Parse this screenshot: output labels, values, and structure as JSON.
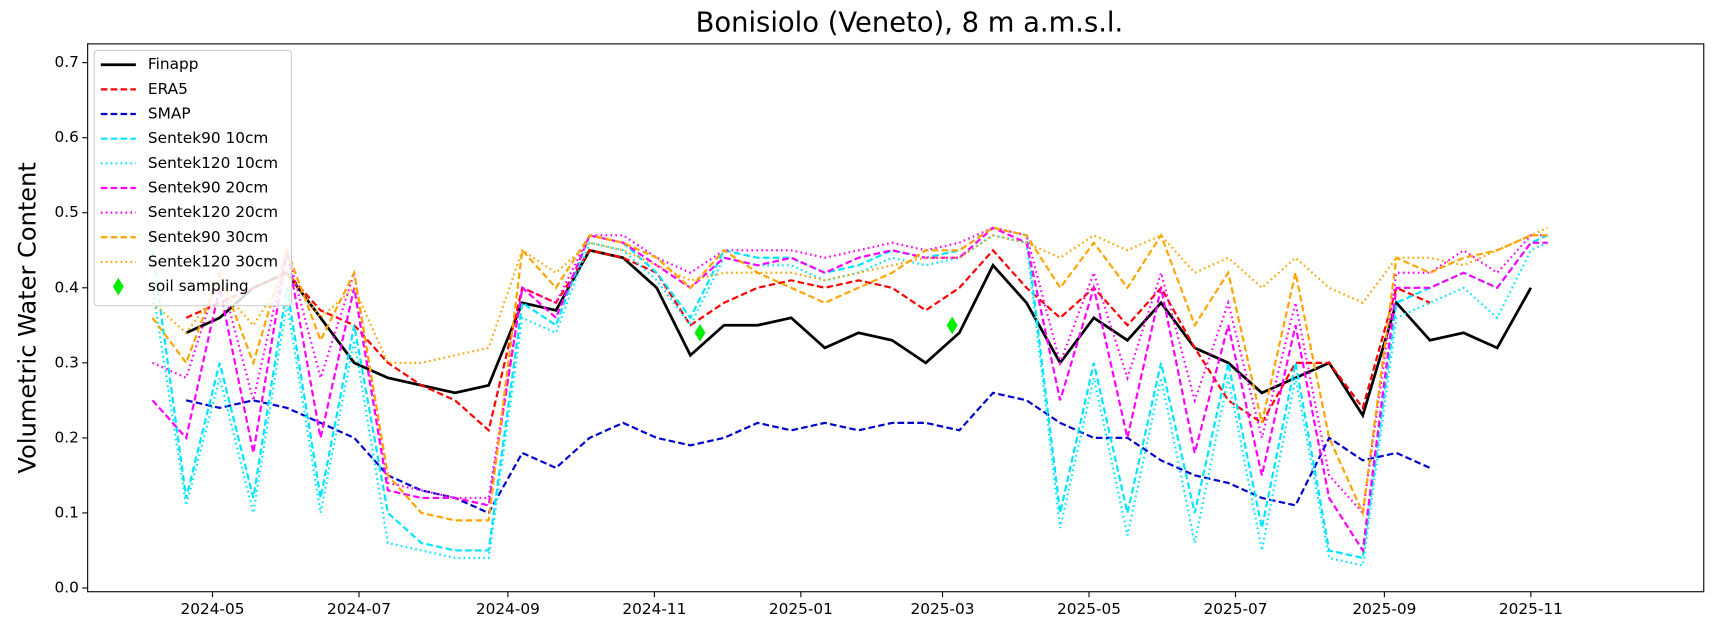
{
  "chart_data": {
    "type": "line",
    "title": "Bonisiolo (Veneto), 8 m a.m.s.l.",
    "y_label": "Volumetric Water Content",
    "xlim": [
      "2024-03-10",
      "2026-01-12"
    ],
    "xticks": [
      "2024-05",
      "2024-07",
      "2024-09",
      "2024-11",
      "2025-01",
      "2025-03",
      "2025-05",
      "2025-07",
      "2025-09",
      "2025-11"
    ],
    "ylim": [
      -0.005,
      0.725
    ],
    "yticks": [
      {
        "value": 0,
        "label": "0.0"
      },
      0.1,
      0.2,
      0.3,
      0.4,
      0.5,
      0.6,
      0.7
    ],
    "legend": "upper left",
    "grid": false,
    "x": [
      "2024-04-06",
      "2024-04-20",
      "2024-05-04",
      "2024-05-18",
      "2024-06-01",
      "2024-06-15",
      "2024-06-29",
      "2024-07-13",
      "2024-07-27",
      "2024-08-10",
      "2024-08-24",
      "2024-09-07",
      "2024-09-21",
      "2024-10-05",
      "2024-10-19",
      "2024-11-02",
      "2024-11-16",
      "2024-11-30",
      "2024-12-14",
      "2024-12-28",
      "2025-01-11",
      "2025-01-25",
      "2025-02-08",
      "2025-02-22",
      "2025-03-08",
      "2025-03-22",
      "2025-04-05",
      "2025-04-19",
      "2025-05-03",
      "2025-05-17",
      "2025-05-31",
      "2025-06-14",
      "2025-06-28",
      "2025-07-12",
      "2025-07-26",
      "2025-08-09",
      "2025-08-23",
      "2025-09-06",
      "2025-09-20",
      "2025-10-04",
      "2025-10-18",
      "2025-11-01",
      "2025-11-08"
    ],
    "series": [
      {
        "name": "Finapp",
        "color": "#000000",
        "style": "solid",
        "values": [
          null,
          0.34,
          0.36,
          0.4,
          0.42,
          0.36,
          0.3,
          0.28,
          0.27,
          0.26,
          0.27,
          0.38,
          0.37,
          0.45,
          0.44,
          0.4,
          0.31,
          0.35,
          0.35,
          0.36,
          0.32,
          0.34,
          0.33,
          0.3,
          0.34,
          0.43,
          0.38,
          0.3,
          0.36,
          0.33,
          0.38,
          0.32,
          0.3,
          0.26,
          0.28,
          0.3,
          0.23,
          0.38,
          0.33,
          0.34,
          0.32,
          0.4,
          null
        ]
      },
      {
        "name": "ERA5",
        "color": "#ff0000",
        "style": "dashed",
        "values": [
          null,
          0.36,
          0.38,
          0.4,
          0.42,
          0.37,
          0.35,
          0.3,
          0.27,
          0.25,
          0.21,
          0.4,
          0.38,
          0.45,
          0.44,
          0.42,
          0.35,
          0.38,
          0.4,
          0.41,
          0.4,
          0.41,
          0.4,
          0.37,
          0.4,
          0.45,
          0.4,
          0.36,
          0.4,
          0.35,
          0.4,
          0.32,
          0.25,
          0.22,
          0.3,
          0.3,
          0.24,
          0.4,
          0.38,
          null,
          null,
          null,
          null
        ]
      },
      {
        "name": "SMAP",
        "color": "#0000cc",
        "style": "dashed",
        "values": [
          null,
          0.25,
          0.24,
          0.25,
          0.24,
          0.22,
          0.2,
          0.15,
          0.13,
          0.12,
          0.1,
          0.18,
          0.16,
          0.2,
          0.22,
          0.2,
          0.19,
          0.2,
          0.22,
          0.21,
          0.22,
          0.21,
          0.22,
          0.22,
          0.21,
          0.26,
          0.25,
          0.22,
          0.2,
          0.2,
          0.17,
          0.15,
          0.14,
          0.12,
          0.11,
          0.2,
          0.17,
          0.18,
          0.16,
          null,
          null,
          null,
          null
        ]
      },
      {
        "name": "Sentek90 10cm",
        "color": "#00e5ff",
        "style": "dashed",
        "values": [
          0.45,
          0.12,
          0.3,
          0.12,
          0.4,
          0.12,
          0.35,
          0.1,
          0.06,
          0.05,
          0.05,
          0.38,
          0.35,
          0.47,
          0.46,
          0.42,
          0.36,
          0.45,
          0.44,
          0.44,
          0.42,
          0.43,
          0.45,
          0.44,
          0.45,
          0.48,
          0.47,
          0.1,
          0.3,
          0.1,
          0.3,
          0.1,
          0.3,
          0.08,
          0.3,
          0.05,
          0.04,
          0.38,
          0.4,
          0.42,
          0.4,
          0.46,
          0.47
        ]
      },
      {
        "name": "Sentek120 10cm",
        "color": "#00e5ff",
        "style": "dotted",
        "values": [
          0.4,
          0.11,
          0.28,
          0.1,
          0.38,
          0.1,
          0.33,
          0.06,
          0.05,
          0.04,
          0.04,
          0.36,
          0.34,
          0.46,
          0.45,
          0.41,
          0.35,
          0.44,
          0.43,
          0.43,
          0.41,
          0.42,
          0.44,
          0.43,
          0.44,
          0.47,
          0.46,
          0.08,
          0.28,
          0.07,
          0.28,
          0.06,
          0.28,
          0.05,
          0.28,
          0.04,
          0.03,
          0.36,
          0.38,
          0.4,
          0.36,
          0.45,
          0.46
        ]
      },
      {
        "name": "Sentek90 20cm",
        "color": "#ff00ff",
        "style": "dashed",
        "values": [
          0.25,
          0.2,
          0.4,
          0.18,
          0.45,
          0.2,
          0.4,
          0.13,
          0.12,
          0.12,
          0.11,
          0.4,
          0.36,
          0.47,
          0.46,
          0.43,
          0.4,
          0.44,
          0.43,
          0.44,
          0.42,
          0.44,
          0.45,
          0.44,
          0.44,
          0.48,
          0.46,
          0.25,
          0.4,
          0.2,
          0.4,
          0.18,
          0.35,
          0.15,
          0.35,
          0.12,
          0.05,
          0.4,
          0.4,
          0.42,
          0.4,
          0.46,
          0.46
        ]
      },
      {
        "name": "Sentek120 20cm",
        "color": "#ff00ff",
        "style": "dotted",
        "values": [
          0.3,
          0.28,
          0.42,
          0.25,
          0.45,
          0.28,
          0.42,
          0.14,
          0.13,
          0.12,
          0.12,
          0.4,
          0.38,
          0.47,
          0.47,
          0.44,
          0.42,
          0.45,
          0.45,
          0.45,
          0.44,
          0.45,
          0.46,
          0.45,
          0.46,
          0.48,
          0.47,
          0.3,
          0.42,
          0.28,
          0.42,
          0.25,
          0.38,
          0.2,
          0.38,
          0.15,
          0.1,
          0.42,
          0.42,
          0.45,
          0.42,
          0.47,
          0.47
        ]
      },
      {
        "name": "Sentek90 30cm",
        "color": "#ffa500",
        "style": "dashed",
        "values": [
          0.36,
          0.3,
          0.42,
          0.3,
          0.45,
          0.33,
          0.42,
          0.15,
          0.1,
          0.09,
          0.09,
          0.45,
          0.4,
          0.47,
          0.46,
          0.44,
          0.4,
          0.45,
          0.42,
          0.4,
          0.38,
          0.4,
          0.42,
          0.45,
          0.45,
          0.48,
          0.47,
          0.4,
          0.46,
          0.4,
          0.47,
          0.35,
          0.42,
          0.22,
          0.42,
          0.2,
          0.1,
          0.44,
          0.42,
          0.44,
          0.45,
          0.47,
          0.47
        ]
      },
      {
        "name": "Sentek120 30cm",
        "color": "#ffa500",
        "style": "dotted",
        "values": [
          0.38,
          0.34,
          0.4,
          0.35,
          0.42,
          0.36,
          0.4,
          0.3,
          0.3,
          0.31,
          0.32,
          0.45,
          0.42,
          0.46,
          0.45,
          0.43,
          0.41,
          0.42,
          0.42,
          0.42,
          0.41,
          0.42,
          0.43,
          0.44,
          0.44,
          0.47,
          0.46,
          0.44,
          0.47,
          0.45,
          0.47,
          0.42,
          0.44,
          0.4,
          0.44,
          0.4,
          0.38,
          0.44,
          0.44,
          0.43,
          0.45,
          0.47,
          0.48
        ]
      },
      {
        "name": "soil sampling",
        "color": "#00ee00",
        "style": "diamond",
        "x": [
          "2024-11-20",
          "2025-03-05"
        ],
        "values": [
          0.34,
          0.35
        ]
      }
    ]
  }
}
